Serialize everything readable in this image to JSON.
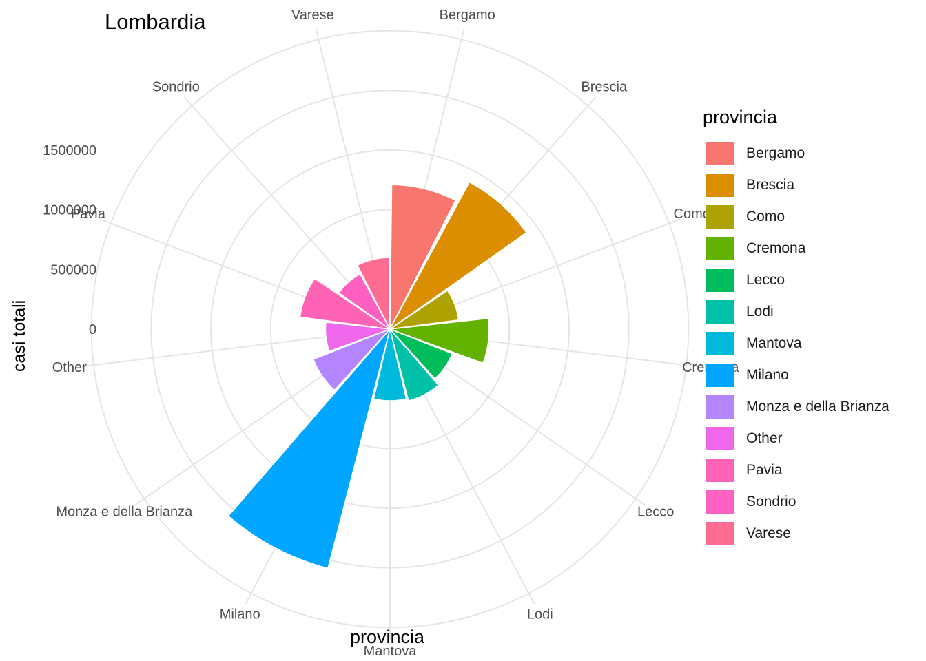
{
  "chart_data": {
    "type": "polar-bar",
    "title": "Lombardia",
    "xlabel": "provincia",
    "ylabel": "casi totali",
    "y_ticks": [
      "1500000",
      "1000000",
      "500000",
      "0"
    ],
    "y_tick_values": [
      1500000,
      1000000,
      500000,
      0
    ],
    "ylim": [
      -500000,
      2100000
    ],
    "grid": true,
    "legend_title": "provincia",
    "legend_position": "right",
    "categories": [
      "Bergamo",
      "Brescia",
      "Como",
      "Cremona",
      "Lecco",
      "Lodi",
      "Mantova",
      "Milano",
      "Monza e della Brianza",
      "Other",
      "Pavia",
      "Sondrio",
      "Varese"
    ],
    "values": [
      710000,
      900000,
      80000,
      330000,
      60000,
      120000,
      100000,
      1570000,
      190000,
      40000,
      260000,
      25000,
      100000
    ],
    "colors": [
      "#F8766D",
      "#DB8E00",
      "#AEA200",
      "#64B200",
      "#00BD5C",
      "#00C1A7",
      "#00BADE",
      "#00A6FF",
      "#B385FF",
      "#EF67EB",
      "#FF63B6",
      "#FF61C3",
      "#FF6C91"
    ]
  }
}
